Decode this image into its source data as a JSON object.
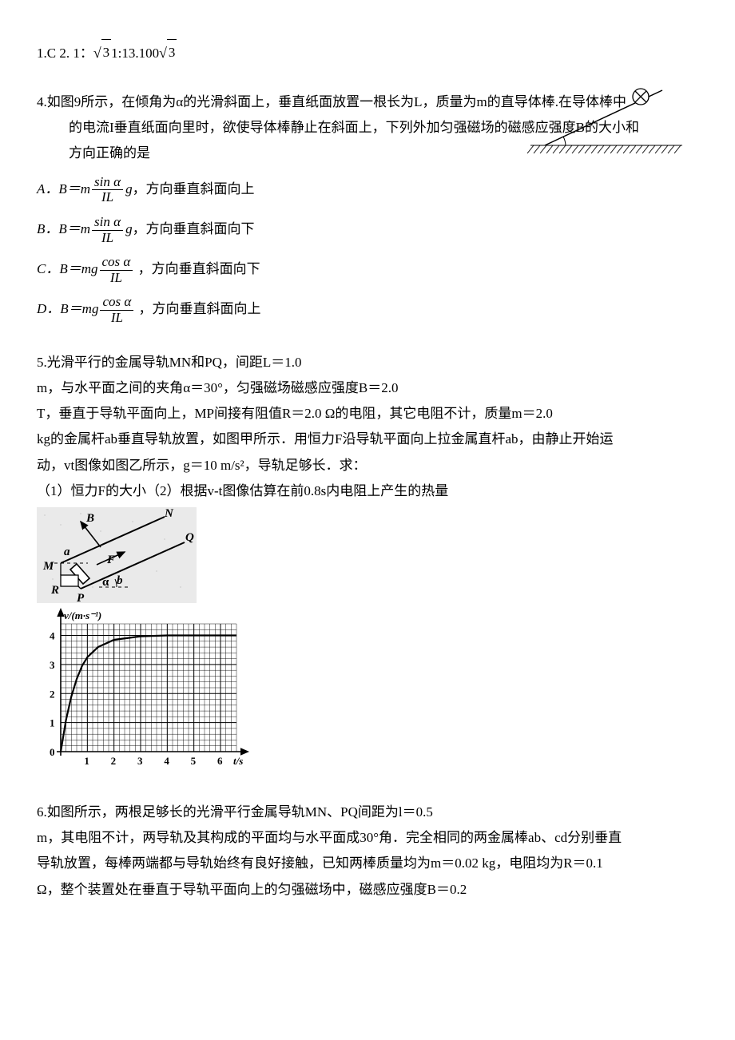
{
  "answers_line": {
    "prefix": "1.C  2. 1：",
    "rad1_arg": "3",
    "mid": "1:13.100",
    "rad2_arg": "3"
  },
  "q4": {
    "stem_l1": "4.如图9所示，在倾角为α的光滑斜面上，垂直纸面放置一根长为L，质量为m的直导体棒.在导体棒中",
    "stem_l2": "的电流I垂直纸面向里时，欲使导体棒静止在斜面上，下列外加匀强磁场的磁感应强度B的大小和",
    "stem_l3": "方向正确的是",
    "A": {
      "pre": "A．B＝m",
      "num": "sin α",
      "den": "IL",
      "post": "g，方向垂直斜面向上"
    },
    "B": {
      "pre": "B．B＝m",
      "num": "sin α",
      "den": "IL",
      "post": "g，方向垂直斜面向下"
    },
    "C": {
      "pre": "C．B＝mg",
      "num": "cos α",
      "den": "IL",
      "post": " ，方向垂直斜面向下"
    },
    "D": {
      "pre": "D．B＝mg",
      "num": "cos α",
      "den": "IL",
      "post": " ，方向垂直斜面向上"
    },
    "diagram": {
      "hatch_color": "#000000",
      "line_color": "#000000"
    }
  },
  "q5": {
    "p1": "5.光滑平行的金属导轨MN和PQ，间距L＝1.0",
    "p2": "m，与水平面之间的夹角α＝30°，匀强磁场磁感应强度B＝2.0",
    "p3": "T，垂直于导轨平面向上，MP间接有阻值R＝2.0 Ω的电阻，其它电阻不计，质量m＝2.0",
    "p4": "kg的金属杆ab垂直导轨放置，如图甲所示．用恒力F沿导轨平面向上拉金属直杆ab，由静止开始运",
    "p5": "动，vt图像如图乙所示，g＝10 m/s²，导轨足够长．求：",
    "p6": "（1）恒力F的大小（2）根据v-t图像估算在前0.8s内电阻上产生的热量",
    "fig_jia_labels": {
      "B": "B",
      "N": "N",
      "Q": "Q",
      "a": "a",
      "F": "F",
      "M": "M",
      "R": "R",
      "P": "P",
      "b": "b",
      "alpha": "α"
    },
    "vt": {
      "ylabel": "v/(m·s⁻¹)",
      "xlabel": "t/s",
      "xticks": [
        "1",
        "2",
        "3",
        "4",
        "5",
        "6"
      ],
      "yticks": [
        "0",
        "1",
        "2",
        "3",
        "4"
      ],
      "grid_major": "#000000",
      "grid_minor": "#000000",
      "curve_color": "#000000",
      "plot": {
        "xlim": [
          0,
          6.6
        ],
        "ylim": [
          0,
          4.4
        ],
        "minor_div_x": 5,
        "minor_div_y": 5,
        "curve_points": [
          [
            0,
            0
          ],
          [
            0.2,
            1.1
          ],
          [
            0.4,
            1.9
          ],
          [
            0.6,
            2.5
          ],
          [
            0.8,
            2.95
          ],
          [
            1.0,
            3.25
          ],
          [
            1.4,
            3.6
          ],
          [
            2.0,
            3.85
          ],
          [
            3.0,
            3.97
          ],
          [
            4.0,
            4.0
          ],
          [
            5.0,
            4.0
          ],
          [
            6.0,
            4.0
          ],
          [
            6.6,
            4.0
          ]
        ]
      }
    }
  },
  "q6": {
    "p1": "6.如图所示，两根足够长的光滑平行金属导轨MN、PQ间距为l＝0.5",
    "p2": "m，其电阻不计，两导轨及其构成的平面均与水平面成30°角．完全相同的两金属棒ab、cd分别垂直",
    "p3": "导轨放置，每棒两端都与导轨始终有良好接触，已知两棒质量均为m＝0.02 kg，电阻均为R＝0.1",
    "p4": "Ω，整个装置处在垂直于导轨平面向上的匀强磁场中，磁感应强度B＝0.2"
  },
  "colors": {
    "text": "#000000",
    "bg": "#ffffff"
  }
}
